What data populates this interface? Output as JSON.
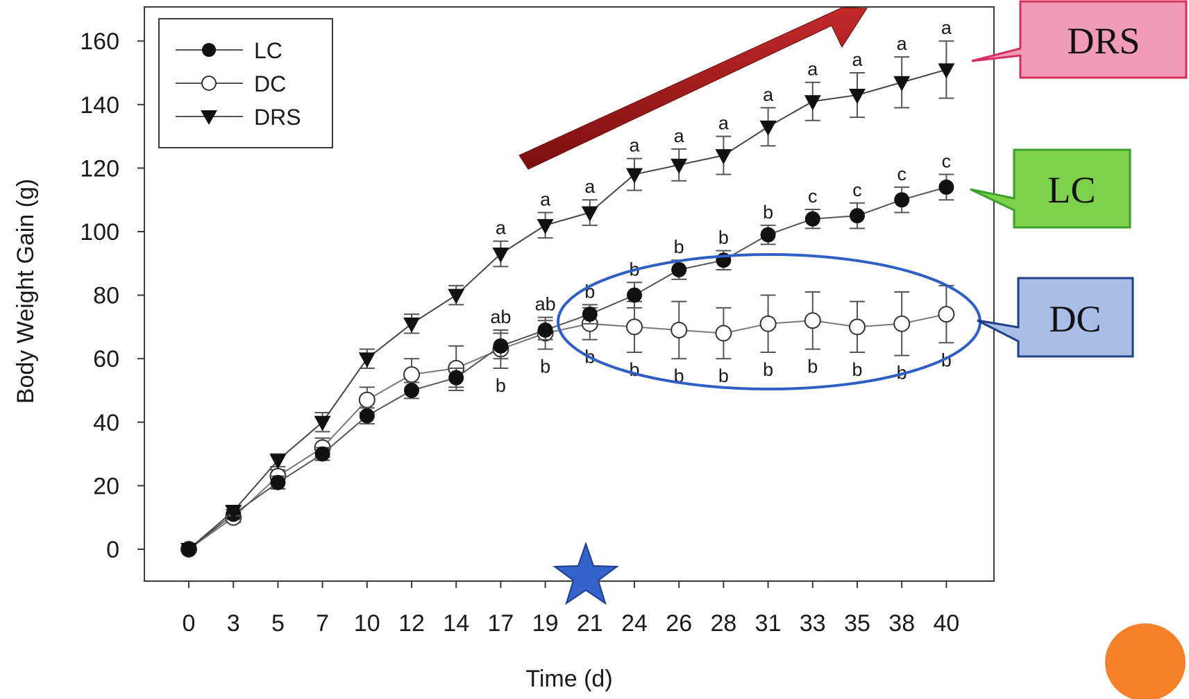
{
  "chart_data": {
    "type": "line",
    "xlabel": "Time (d)",
    "ylabel": "Body Weight Gain (g)",
    "x": [
      0,
      3,
      5,
      7,
      10,
      12,
      14,
      17,
      19,
      21,
      24,
      26,
      28,
      31,
      33,
      35,
      38,
      40
    ],
    "x_tick_labels": [
      "0",
      "3",
      "5",
      "7",
      "10",
      "12",
      "14",
      "17",
      "19",
      "21",
      "24",
      "26",
      "28",
      "31",
      "33",
      "35",
      "38",
      "40"
    ],
    "ylim": [
      -10,
      170
    ],
    "y_ticks": [
      0,
      20,
      40,
      60,
      80,
      100,
      120,
      140,
      160
    ],
    "y_tick_labels": [
      "0",
      "20",
      "40",
      "60",
      "80",
      "100",
      "120",
      "140",
      "160"
    ],
    "grid": false,
    "legend_position": "top-left",
    "series": [
      {
        "name": "LC",
        "marker": "filled-circle",
        "values": [
          0,
          11,
          21,
          30,
          42,
          50,
          54,
          64,
          69,
          74,
          80,
          88,
          91,
          99,
          104,
          105,
          110,
          114
        ],
        "errors": [
          0,
          1.5,
          2,
          2,
          2.5,
          2.5,
          3,
          4,
          3,
          3,
          4,
          3,
          3,
          3,
          3,
          4,
          4,
          4
        ],
        "sig_letters": [
          "",
          "",
          "",
          "",
          "",
          "",
          "",
          "",
          "",
          "b",
          "b",
          "b",
          "b",
          "b",
          "c",
          "c",
          "c",
          "c"
        ]
      },
      {
        "name": "DC",
        "marker": "open-circle",
        "values": [
          0,
          10,
          23,
          32,
          47,
          55,
          57,
          63,
          68,
          71,
          70,
          69,
          68,
          71,
          72,
          70,
          71,
          74
        ],
        "errors": [
          0,
          1.5,
          2,
          3,
          4,
          5,
          7,
          6,
          5,
          5,
          8,
          9,
          8,
          9,
          9,
          8,
          10,
          9
        ],
        "sig_letters": [
          "",
          "",
          "",
          "",
          "",
          "",
          "",
          "b",
          "b",
          "b",
          "b",
          "b",
          "b",
          "b",
          "b",
          "b",
          "b",
          "b"
        ]
      },
      {
        "name": "DRS",
        "marker": "filled-triangle-down",
        "values": [
          0,
          12,
          28,
          40,
          60,
          71,
          80,
          93,
          102,
          106,
          118,
          121,
          124,
          133,
          141,
          143,
          147,
          151
        ],
        "errors": [
          0,
          1.5,
          2,
          3,
          3,
          3,
          3,
          4,
          4,
          4,
          5,
          5,
          6,
          6,
          6,
          7,
          8,
          9
        ],
        "sig_letters": [
          "",
          "",
          "",
          "",
          "",
          "",
          "",
          "a",
          "a",
          "a",
          "a",
          "a",
          "a",
          "a",
          "a",
          "a",
          "a",
          "a"
        ]
      }
    ],
    "mid_letters": [
      "",
      "",
      "",
      "",
      "",
      "",
      "",
      "ab",
      "ab",
      "",
      "",
      "",
      "",
      "",
      "",
      "",
      "",
      ""
    ]
  },
  "callouts": [
    {
      "label": "DRS",
      "fill": "#f29bb8",
      "stroke": "#d62f5e"
    },
    {
      "label": "LC",
      "fill": "#7ed14a",
      "stroke": "#3aa22a"
    },
    {
      "label": "DC",
      "fill": "#a9bde6",
      "stroke": "#1f3f8a"
    }
  ],
  "annotations": {
    "arrow_color": "#a01818",
    "ellipse_color": "#2f5fc4",
    "star_color": "#3563c9",
    "dot_color": "#f5822a"
  }
}
